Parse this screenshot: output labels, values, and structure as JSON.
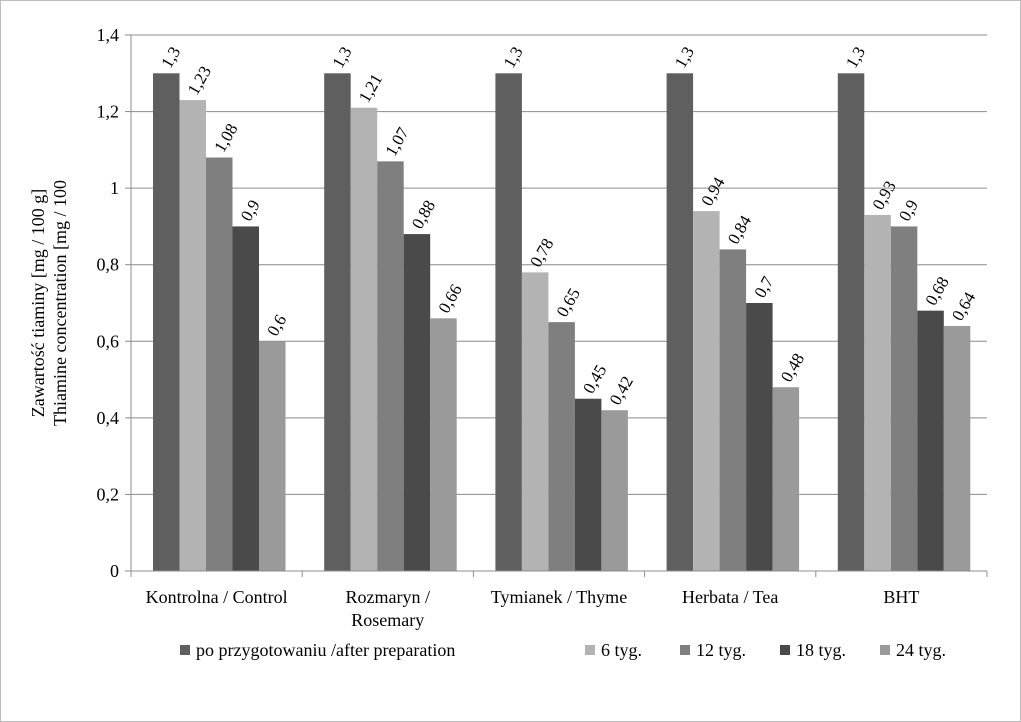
{
  "chart_data": {
    "type": "bar",
    "categories": [
      [
        "Kontrolna / Control"
      ],
      [
        "Rozmaryn /",
        "Rosemary"
      ],
      [
        "Tymianek / Thyme"
      ],
      [
        "Herbata / Tea"
      ],
      [
        "BHT"
      ]
    ],
    "series": [
      {
        "name": "po przygotowaniu /after preparation",
        "color": "#5f5f5f",
        "values": [
          1.3,
          1.3,
          1.3,
          1.3,
          1.3
        ],
        "labels": [
          "1,3",
          "1,3",
          "1,3",
          "1,3",
          "1,3"
        ]
      },
      {
        "name": "6 tyg.",
        "color": "#b3b3b3",
        "values": [
          1.23,
          1.21,
          0.78,
          0.94,
          0.93
        ],
        "labels": [
          "1,23",
          "1,21",
          "0,78",
          "0,94",
          "0,93"
        ]
      },
      {
        "name": "12 tyg.",
        "color": "#7f7f7f",
        "values": [
          1.08,
          1.07,
          0.65,
          0.84,
          0.9
        ],
        "labels": [
          "1,08",
          "1,07",
          "0,65",
          "0,84",
          "0,9"
        ]
      },
      {
        "name": "18 tyg.",
        "color": "#4a4a4a",
        "values": [
          0.9,
          0.88,
          0.45,
          0.7,
          0.68
        ],
        "labels": [
          "0,9",
          "0,88",
          "0,45",
          "0,7",
          "0,68"
        ]
      },
      {
        "name": "24 tyg.",
        "color": "#9a9a9a",
        "values": [
          0.6,
          0.66,
          0.42,
          0.48,
          0.64
        ],
        "labels": [
          "0,6",
          "0,66",
          "0,42",
          "0,48",
          "0,64"
        ]
      }
    ],
    "ylabel": [
      "Zawartość tiaminy [mg / 100 g]",
      "Thiamine concentration [mg / 100"
    ],
    "ylim": [
      0,
      1.4
    ],
    "yticks": [
      0,
      0.2,
      0.4,
      0.6,
      0.8,
      1,
      1.2,
      1.4
    ],
    "ytick_labels": [
      "0",
      "0,2",
      "0,4",
      "0,6",
      "0,8",
      "1",
      "1,2",
      "1,4"
    ],
    "grid": true,
    "legend_position": "bottom"
  }
}
